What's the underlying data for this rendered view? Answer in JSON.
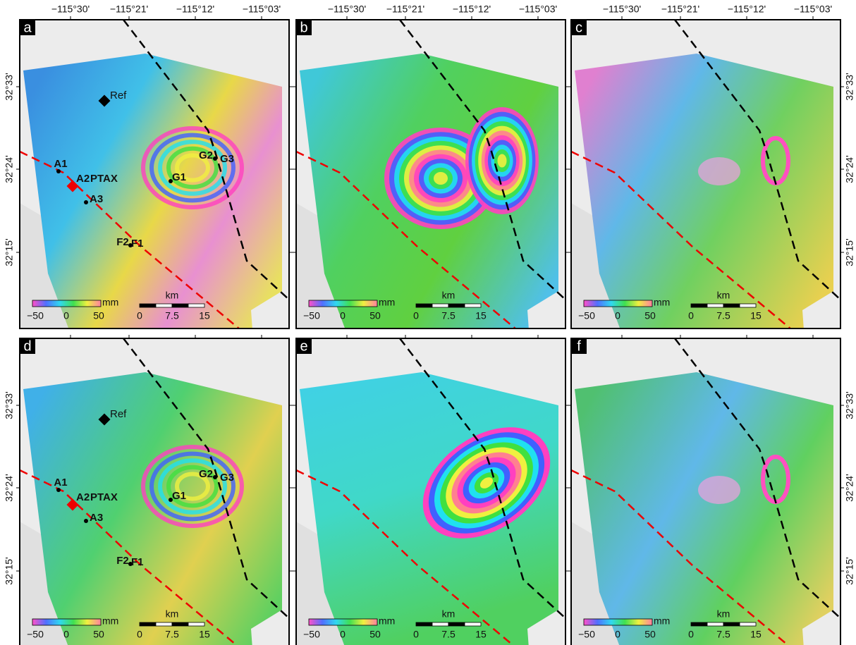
{
  "x_ticks": [
    "−115°30'",
    "−115°21'",
    "−115°12'",
    "−115°03'"
  ],
  "y_ticks": [
    "32°33'",
    "32°24'",
    "32°15'"
  ],
  "colorbar": {
    "ticks": [
      "−50",
      "0",
      "50"
    ],
    "unit": "mm"
  },
  "scalebar": {
    "unit": "km",
    "ticks": [
      "0",
      "7.5",
      "15"
    ]
  },
  "panels": [
    {
      "label": "a",
      "annotated": true
    },
    {
      "label": "b",
      "annotated": false
    },
    {
      "label": "c",
      "annotated": false
    },
    {
      "label": "d",
      "annotated": true
    },
    {
      "label": "e",
      "annotated": false
    },
    {
      "label": "f",
      "annotated": false
    }
  ],
  "annotations": [
    {
      "label": "Ref"
    },
    {
      "label": "A1"
    },
    {
      "label": "A2"
    },
    {
      "label": "PTAX"
    },
    {
      "label": "A3"
    },
    {
      "label": "G1"
    },
    {
      "label": "G2"
    },
    {
      "label": "G3"
    },
    {
      "label": "F2"
    },
    {
      "label": "F1"
    }
  ]
}
